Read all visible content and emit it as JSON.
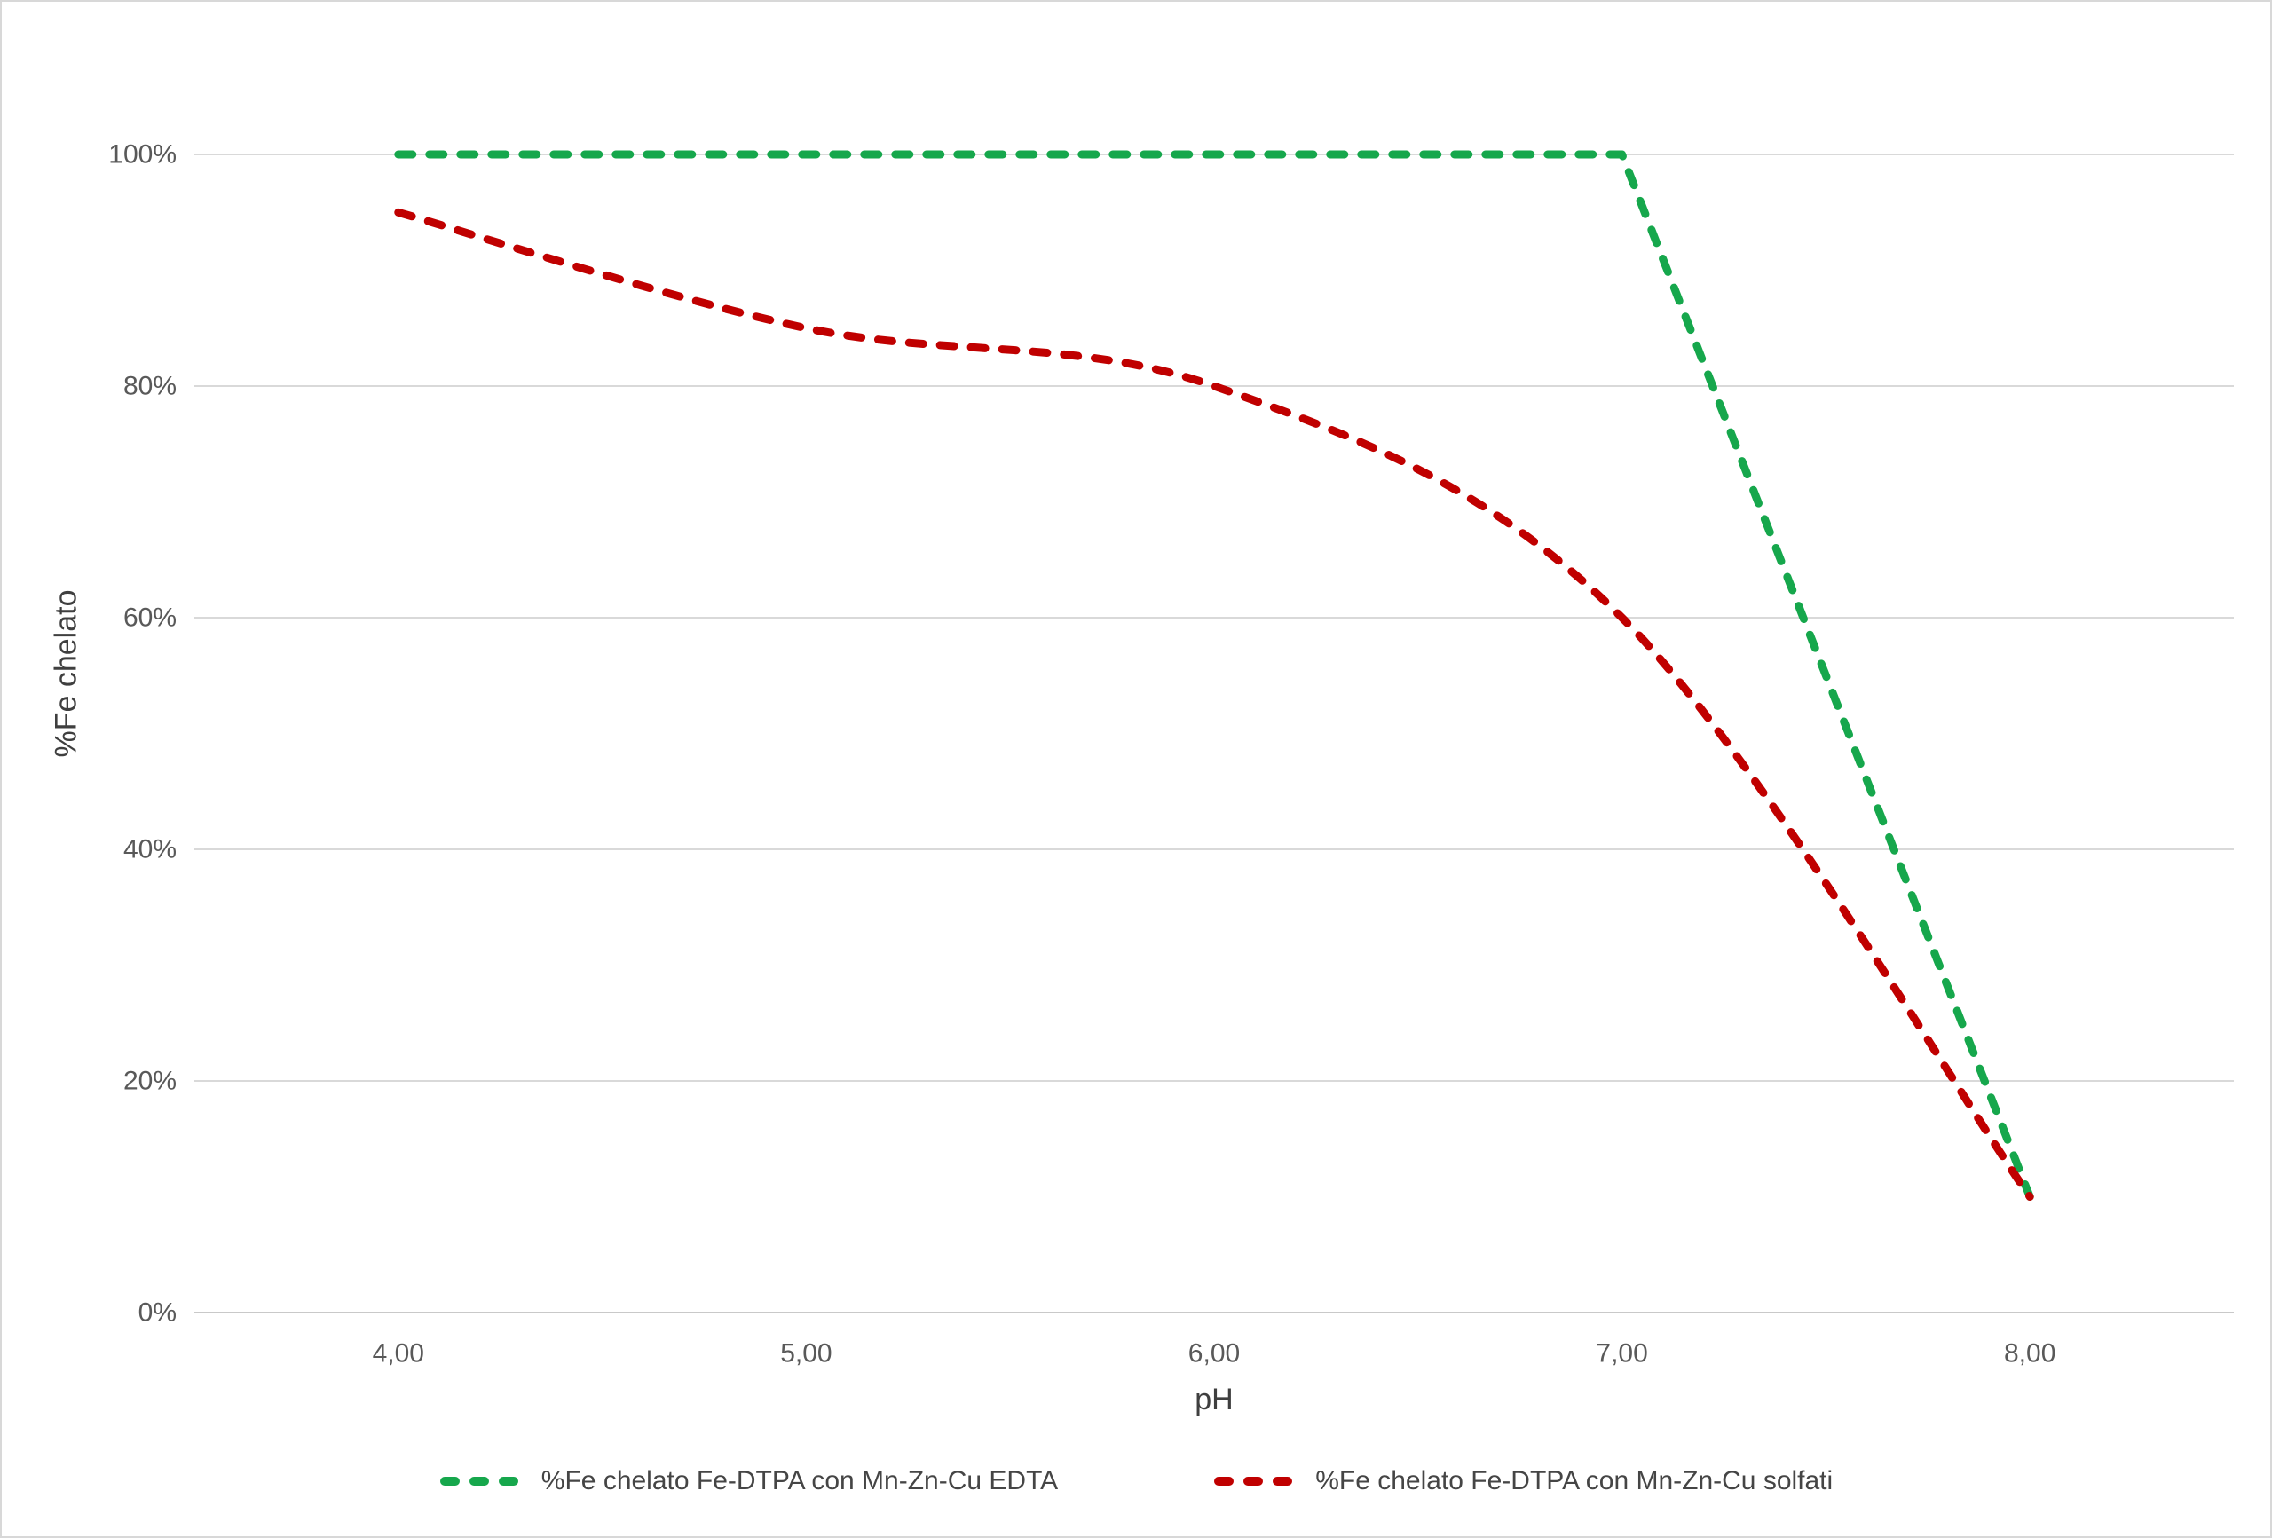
{
  "chart_data": {
    "type": "line",
    "title": "",
    "xlabel": "pH",
    "ylabel": "%Fe chelato",
    "x": [
      4.0,
      5.0,
      6.0,
      7.0,
      8.0
    ],
    "x_tick_labels": [
      "4,00",
      "5,00",
      "6,00",
      "7,00",
      "8,00"
    ],
    "xlim": [
      3.5,
      8.5
    ],
    "y_ticks": [
      0,
      20,
      40,
      60,
      80,
      100
    ],
    "y_tick_labels": [
      "0%",
      "20%",
      "40%",
      "60%",
      "80%",
      "100%"
    ],
    "ylim": [
      0,
      100
    ],
    "grid": "horizontal-only",
    "grid_color": "#d9d9d9",
    "line_style": "dashed",
    "legend_position": "bottom-center",
    "series": [
      {
        "name": "%Fe chelato Fe-DTPA con Mn-Zn-Cu EDTA",
        "color": "#16a74c",
        "smooth": false,
        "values": [
          100,
          100,
          100,
          100,
          10
        ]
      },
      {
        "name": "%Fe chelato Fe-DTPA con Mn-Zn-Cu solfati",
        "color": "#c00000",
        "smooth": true,
        "values": [
          95,
          85,
          80,
          60,
          10
        ]
      }
    ]
  },
  "colors": {
    "tick_text": "#595959",
    "axis_title_text": "#3f3f3f",
    "legend_text": "#454545",
    "chart_border": "#d8d8d8",
    "background": "#ffffff"
  }
}
